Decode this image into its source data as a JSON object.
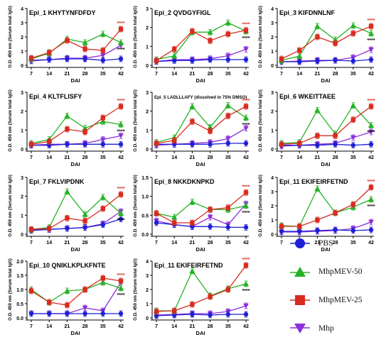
{
  "chart_data": [
    {
      "type": "line",
      "title": "Epi_1 KHYTYNFDFDY",
      "xlabel": "DAI",
      "ylabel": "O.D. 450 nm (Serum total IgG)",
      "x": [
        7,
        14,
        21,
        28,
        35,
        42
      ],
      "ylim": [
        0,
        4
      ],
      "yticks": [
        0,
        1,
        2,
        3,
        4
      ],
      "series": [
        {
          "name": "PBS",
          "values": [
            0.35,
            0.4,
            0.45,
            0.45,
            0.35,
            0.45
          ]
        },
        {
          "name": "MhpMEV-50",
          "values": [
            0.45,
            0.85,
            1.85,
            1.6,
            2.2,
            1.6
          ]
        },
        {
          "name": "MhpMEV-25",
          "values": [
            0.5,
            0.9,
            1.75,
            1.15,
            1.05,
            2.55
          ]
        },
        {
          "name": "Mhp",
          "values": [
            0.3,
            0.4,
            0.5,
            0.5,
            0.7,
            1.4
          ]
        }
      ],
      "annotations": [
        "****",
        "****"
      ]
    },
    {
      "type": "line",
      "title": "Epi_2 QVDGYFIGL",
      "xlabel": "DAI",
      "ylabel": "O.D. 450 nm (Serum total IgG)",
      "x": [
        7,
        14,
        21,
        28,
        35,
        42
      ],
      "ylim": [
        0,
        3
      ],
      "yticks": [
        0,
        1,
        2,
        3
      ],
      "series": [
        {
          "name": "PBS",
          "values": [
            0.2,
            0.25,
            0.25,
            0.3,
            0.3,
            0.3
          ]
        },
        {
          "name": "MhpMEV-50",
          "values": [
            0.3,
            0.5,
            1.75,
            1.75,
            2.25,
            1.8
          ]
        },
        {
          "name": "MhpMEV-25",
          "values": [
            0.25,
            0.85,
            1.8,
            1.3,
            1.65,
            1.85
          ]
        },
        {
          "name": "Mhp",
          "values": [
            0.2,
            0.3,
            0.3,
            0.35,
            0.5,
            0.85
          ]
        }
      ],
      "annotations": [
        "****",
        "****"
      ]
    },
    {
      "type": "line",
      "title": "Epi_3 KIFDNNLNF",
      "xlabel": "DAI",
      "ylabel": "O.D. 450 nm (Serum total IgG)",
      "x": [
        7,
        14,
        21,
        28,
        35,
        42
      ],
      "ylim": [
        0,
        4
      ],
      "yticks": [
        0,
        1,
        2,
        3,
        4
      ],
      "series": [
        {
          "name": "PBS",
          "values": [
            0.25,
            0.25,
            0.3,
            0.35,
            0.3,
            0.4
          ]
        },
        {
          "name": "MhpMEV-50",
          "values": [
            0.35,
            0.65,
            2.75,
            1.8,
            2.8,
            2.25
          ]
        },
        {
          "name": "MhpMEV-25",
          "values": [
            0.45,
            1.05,
            2.0,
            1.55,
            2.25,
            2.75
          ]
        },
        {
          "name": "Mhp",
          "values": [
            0.25,
            0.3,
            0.35,
            0.35,
            0.55,
            1.1
          ]
        }
      ],
      "annotations": [
        "****",
        "****"
      ]
    },
    {
      "type": "line",
      "title": "Epi_4 KLTFLISFY",
      "xlabel": "DAI",
      "ylabel": "O.D. 450 nm (Serum total IgG)",
      "x": [
        7,
        14,
        21,
        28,
        35,
        42
      ],
      "ylim": [
        0,
        3
      ],
      "yticks": [
        0,
        1,
        2,
        3
      ],
      "series": [
        {
          "name": "PBS",
          "values": [
            0.2,
            0.2,
            0.25,
            0.25,
            0.25,
            0.25
          ]
        },
        {
          "name": "MhpMEV-50",
          "values": [
            0.3,
            0.5,
            1.75,
            1.1,
            1.45,
            1.3
          ]
        },
        {
          "name": "MhpMEV-25",
          "values": [
            0.25,
            0.4,
            1.05,
            0.9,
            1.65,
            2.25
          ]
        },
        {
          "name": "Mhp",
          "values": [
            0.2,
            0.25,
            0.25,
            0.3,
            0.5,
            0.7
          ]
        }
      ],
      "annotations": [
        "****",
        "****"
      ]
    },
    {
      "type": "line",
      "title": "Epi_5 LADLLLAFY (dissolved in 75% DMSO)",
      "xlabel": "DAI",
      "ylabel": "O.D. 450 nm (Serum total IgG)",
      "x": [
        7,
        14,
        21,
        28,
        35,
        42
      ],
      "ylim": [
        0,
        3
      ],
      "yticks": [
        0,
        1,
        2,
        3
      ],
      "series": [
        {
          "name": "PBS",
          "values": [
            0.25,
            0.25,
            0.25,
            0.25,
            0.3,
            0.3
          ]
        },
        {
          "name": "MhpMEV-50",
          "values": [
            0.35,
            0.6,
            2.25,
            1.15,
            2.3,
            1.65
          ]
        },
        {
          "name": "MhpMEV-25",
          "values": [
            0.3,
            0.45,
            1.45,
            0.95,
            1.75,
            2.25
          ]
        },
        {
          "name": "Mhp",
          "values": [
            0.2,
            0.25,
            0.3,
            0.35,
            0.55,
            1.1
          ]
        }
      ],
      "annotations": [
        "****",
        "****"
      ]
    },
    {
      "type": "line",
      "title": "Epi_6 WKEITTAEE",
      "xlabel": "DAI",
      "ylabel": "O.D. 450 nm (Serum total IgG)",
      "x": [
        7,
        14,
        21,
        28,
        35,
        42
      ],
      "ylim": [
        0,
        3
      ],
      "yticks": [
        0,
        1,
        2,
        3
      ],
      "series": [
        {
          "name": "PBS",
          "values": [
            0.2,
            0.2,
            0.2,
            0.25,
            0.2,
            0.25
          ]
        },
        {
          "name": "MhpMEV-50",
          "values": [
            0.3,
            0.35,
            2.05,
            0.8,
            2.3,
            1.25
          ]
        },
        {
          "name": "MhpMEV-25",
          "values": [
            0.25,
            0.3,
            0.7,
            0.7,
            1.55,
            2.25
          ]
        },
        {
          "name": "Mhp",
          "values": [
            0.15,
            0.2,
            0.25,
            0.3,
            0.6,
            0.9
          ]
        }
      ],
      "annotations": [
        "****",
        "****"
      ]
    },
    {
      "type": "line",
      "title": "Epi_7 FKLVIPDNK",
      "xlabel": "DAI",
      "ylabel": "O.D. 450 nm (Serum total IgG)",
      "x": [
        7,
        14,
        21,
        28,
        35,
        42
      ],
      "ylim": [
        0,
        3
      ],
      "yticks": [
        0,
        1,
        2,
        3
      ],
      "series": [
        {
          "name": "PBS",
          "values": [
            0.2,
            0.25,
            0.3,
            0.35,
            0.5,
            0.8
          ]
        },
        {
          "name": "MhpMEV-50",
          "values": [
            0.25,
            0.35,
            2.25,
            1.05,
            1.95,
            1.1
          ]
        },
        {
          "name": "MhpMEV-25",
          "values": [
            0.25,
            0.3,
            0.85,
            0.7,
            1.35,
            2.1
          ]
        },
        {
          "name": "Mhp",
          "values": [
            0.2,
            0.25,
            0.3,
            0.35,
            0.55,
            1.2
          ]
        }
      ],
      "annotations": [
        "****",
        "****"
      ]
    },
    {
      "type": "line",
      "title": "Epi_8 NKKDKNPKD",
      "xlabel": "DAI",
      "ylabel": "O.D. 450 nm (Serum total IgG)",
      "x": [
        7,
        14,
        21,
        28,
        35,
        42
      ],
      "ylim": [
        0,
        1.5
      ],
      "yticks": [
        0,
        0.5,
        1.0,
        1.5
      ],
      "series": [
        {
          "name": "PBS",
          "values": [
            0.3,
            0.25,
            0.2,
            0.2,
            0.18,
            0.18
          ]
        },
        {
          "name": "MhpMEV-50",
          "values": [
            0.55,
            0.45,
            0.85,
            0.65,
            0.65,
            0.75
          ]
        },
        {
          "name": "MhpMEV-25",
          "values": [
            0.55,
            0.3,
            0.3,
            0.65,
            0.7,
            1.1
          ]
        },
        {
          "name": "Mhp",
          "values": [
            0.35,
            0.25,
            0.2,
            0.45,
            0.25,
            0.8
          ]
        }
      ],
      "annotations": [
        "****",
        "****"
      ]
    },
    {
      "type": "line",
      "title": "Epi_11 EKIFEIRFETND",
      "xlabel": "DAI",
      "ylabel": "O.D. 450 nm (Serum total IgG)",
      "x": [
        7,
        14,
        21,
        28,
        35,
        42
      ],
      "ylim": [
        0,
        4
      ],
      "yticks": [
        0,
        1,
        2,
        3,
        4
      ],
      "series": [
        {
          "name": "PBS",
          "values": [
            0.2,
            0.2,
            0.25,
            0.3,
            0.25,
            0.3
          ]
        },
        {
          "name": "MhpMEV-50",
          "values": [
            0.6,
            0.55,
            3.2,
            1.5,
            1.9,
            2.45
          ]
        },
        {
          "name": "MhpMEV-25",
          "values": [
            0.55,
            0.55,
            1.0,
            1.5,
            2.1,
            3.3
          ]
        },
        {
          "name": "Mhp",
          "values": [
            0.15,
            0.15,
            0.2,
            0.25,
            0.4,
            0.85
          ]
        }
      ],
      "annotations": [
        "****",
        "****"
      ]
    },
    {
      "type": "line",
      "title": "Epi_10 QNIKLKPLKFNTE",
      "xlabel": "DAI",
      "ylabel": "O.D. 450 nm (Serum total IgG)",
      "x": [
        7,
        14,
        21,
        28,
        35,
        42
      ],
      "ylim": [
        0,
        2.0
      ],
      "yticks": [
        0,
        0.5,
        1.0,
        1.5,
        2.0
      ],
      "series": [
        {
          "name": "PBS",
          "values": [
            0.15,
            0.15,
            0.15,
            0.15,
            0.15,
            0.15
          ]
        },
        {
          "name": "MhpMEV-50",
          "values": [
            1.0,
            0.55,
            0.95,
            1.0,
            1.25,
            1.05
          ]
        },
        {
          "name": "MhpMEV-25",
          "values": [
            0.95,
            0.55,
            0.45,
            1.0,
            1.4,
            1.3
          ]
        },
        {
          "name": "Mhp",
          "values": [
            0.15,
            0.15,
            0.15,
            0.35,
            0.25,
            1.25
          ]
        }
      ],
      "annotations": [
        "****",
        "****"
      ]
    },
    {
      "type": "line",
      "title": "Epi_11 EKIFEIRFETND",
      "xlabel": "DAI",
      "ylabel": "O.D. 450 nm (Serum total IgG)",
      "x": [
        7,
        14,
        21,
        28,
        35,
        42
      ],
      "ylim": [
        0,
        4
      ],
      "yticks": [
        0,
        1,
        2,
        3,
        4
      ],
      "series": [
        {
          "name": "PBS",
          "values": [
            0.15,
            0.2,
            0.25,
            0.2,
            0.25,
            0.25
          ]
        },
        {
          "name": "MhpMEV-50",
          "values": [
            0.5,
            0.5,
            3.3,
            1.55,
            2.05,
            2.4
          ]
        },
        {
          "name": "MhpMEV-25",
          "values": [
            0.45,
            0.5,
            0.95,
            1.5,
            2.0,
            3.7
          ]
        },
        {
          "name": "Mhp",
          "values": [
            0.2,
            0.25,
            0.3,
            0.3,
            0.45,
            0.85
          ]
        }
      ],
      "annotations": [
        "****",
        "****"
      ]
    }
  ],
  "legend": {
    "items": [
      {
        "label": "PBS",
        "color": "#1f1fd6",
        "marker": "circle"
      },
      {
        "label": "MhpMEV-50",
        "color": "#25b325",
        "marker": "triangle-up"
      },
      {
        "label": "MhpMEV-25",
        "color": "#d92b1f",
        "marker": "square"
      },
      {
        "label": "Mhp",
        "color": "#8e2fd9",
        "marker": "triangle-down"
      }
    ]
  },
  "colors": {
    "PBS": "#1f1fd6",
    "MhpMEV-50": "#25b325",
    "MhpMEV-25": "#d92b1f",
    "Mhp": "#8e2fd9",
    "annotation": "#d92b1f"
  }
}
